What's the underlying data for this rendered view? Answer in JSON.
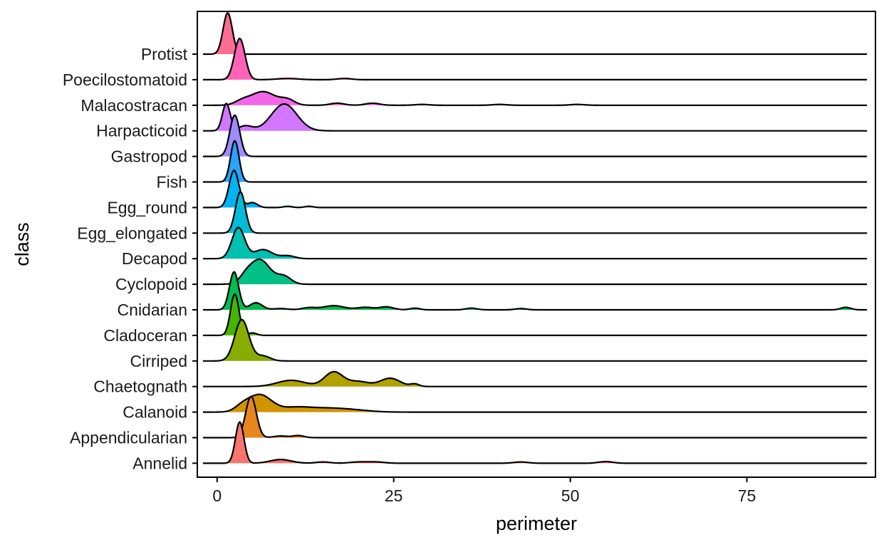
{
  "chart_data": {
    "type": "ridgeline",
    "xlabel": "perimeter",
    "ylabel": "class",
    "xlim": [
      -2.8,
      93.2
    ],
    "x_ticks": [
      0,
      25,
      50,
      75
    ],
    "x_tick_labels": [
      "0",
      "25",
      "50",
      "75"
    ],
    "x_range": [
      -2,
      92
    ],
    "grid": false,
    "legend": "none",
    "series": [
      {
        "name": "Annelid",
        "color": "#F8766D",
        "peaks": [
          [
            3.2,
            0.6,
            1.0
          ],
          [
            9,
            1.5,
            0.09
          ],
          [
            15,
            1,
            0.03
          ],
          [
            20,
            1.2,
            0.03
          ],
          [
            22.5,
            1.2,
            0.03
          ],
          [
            43,
            1,
            0.03
          ],
          [
            55,
            1,
            0.04
          ]
        ]
      },
      {
        "name": "Appendicularian",
        "color": "#E7851E",
        "peaks": [
          [
            4.8,
            0.75,
            1.0
          ],
          [
            11.5,
            0.8,
            0.05
          ],
          [
            9,
            1,
            0.04
          ]
        ]
      },
      {
        "name": "Calanoid",
        "color": "#D09400",
        "peaks": [
          [
            6,
            1.7,
            0.42
          ],
          [
            3.5,
            1.0,
            0.1
          ],
          [
            11,
            2,
            0.1
          ],
          [
            15,
            2.5,
            0.08
          ],
          [
            19,
            2.5,
            0.05
          ]
        ]
      },
      {
        "name": "Chaetognath",
        "color": "#B2A100",
        "peaks": [
          [
            10.5,
            2,
            0.15
          ],
          [
            16.5,
            1.3,
            0.35
          ],
          [
            20,
            1.5,
            0.12
          ],
          [
            24.5,
            1.4,
            0.2
          ],
          [
            28,
            0.6,
            0.06
          ]
        ]
      },
      {
        "name": "Cirriped",
        "color": "#89AC00",
        "peaks": [
          [
            3.5,
            1.0,
            1.0
          ],
          [
            6.5,
            1,
            0.12
          ]
        ]
      },
      {
        "name": "Cladoceran",
        "color": "#45B500",
        "peaks": [
          [
            2.5,
            0.6,
            1.0
          ],
          [
            5,
            0.6,
            0.06
          ]
        ]
      },
      {
        "name": "Cnidarian",
        "color": "#00BC51",
        "peaks": [
          [
            2.4,
            0.65,
            0.92
          ],
          [
            5.5,
            0.9,
            0.17
          ],
          [
            9,
            1,
            0.03
          ],
          [
            13,
            1,
            0.05
          ],
          [
            16.5,
            1.5,
            0.1
          ],
          [
            21,
            1.2,
            0.06
          ],
          [
            24,
            1,
            0.07
          ],
          [
            28,
            0.7,
            0.04
          ],
          [
            36,
            0.8,
            0.04
          ],
          [
            43,
            0.8,
            0.03
          ],
          [
            89,
            0.7,
            0.06
          ]
        ]
      },
      {
        "name": "Cyclopoid",
        "color": "#00C087",
        "peaks": [
          [
            6,
            1.5,
            0.6
          ],
          [
            9.5,
            1,
            0.18
          ],
          [
            4,
            0.8,
            0.1
          ]
        ]
      },
      {
        "name": "Decapod",
        "color": "#00C0B2",
        "peaks": [
          [
            3,
            0.9,
            0.75
          ],
          [
            6.5,
            1.3,
            0.22
          ],
          [
            10,
            1,
            0.07
          ]
        ]
      },
      {
        "name": "Egg_elongated",
        "color": "#00BCD6",
        "peaks": [
          [
            3.3,
            0.7,
            1.0
          ]
        ]
      },
      {
        "name": "Egg_round",
        "color": "#00B3F2",
        "peaks": [
          [
            2.4,
            0.7,
            0.9
          ],
          [
            5,
            0.7,
            0.12
          ],
          [
            10,
            0.6,
            0.03
          ],
          [
            13,
            0.6,
            0.03
          ]
        ]
      },
      {
        "name": "Fish",
        "color": "#29A3FF",
        "peaks": [
          [
            2.5,
            0.6,
            1.0
          ]
        ]
      },
      {
        "name": "Gastropod",
        "color": "#9C8DFF",
        "peaks": [
          [
            2.5,
            0.7,
            1.0
          ]
        ]
      },
      {
        "name": "Harpacticoid",
        "color": "#D277FF",
        "peaks": [
          [
            1.3,
            0.55,
            0.66
          ],
          [
            9.5,
            1.8,
            0.65
          ],
          [
            4,
            1,
            0.12
          ]
        ]
      },
      {
        "name": "Malacostracan",
        "color": "#F166E8",
        "peaks": [
          [
            6.5,
            1.8,
            0.33
          ],
          [
            10,
            1,
            0.12
          ],
          [
            17,
            1,
            0.05
          ],
          [
            22,
            1,
            0.05
          ],
          [
            29,
            1,
            0.02
          ],
          [
            40,
            1,
            0.02
          ],
          [
            51,
            1,
            0.02
          ],
          [
            3.5,
            1,
            0.08
          ]
        ]
      },
      {
        "name": "Poecilostomatoid",
        "color": "#FF63B6",
        "peaks": [
          [
            3.2,
            0.75,
            1.0
          ],
          [
            10,
            1.5,
            0.03
          ],
          [
            18,
            1,
            0.03
          ]
        ]
      },
      {
        "name": "Protist",
        "color": "#FF6C91",
        "peaks": [
          [
            1.5,
            0.65,
            1.0
          ]
        ]
      }
    ]
  }
}
